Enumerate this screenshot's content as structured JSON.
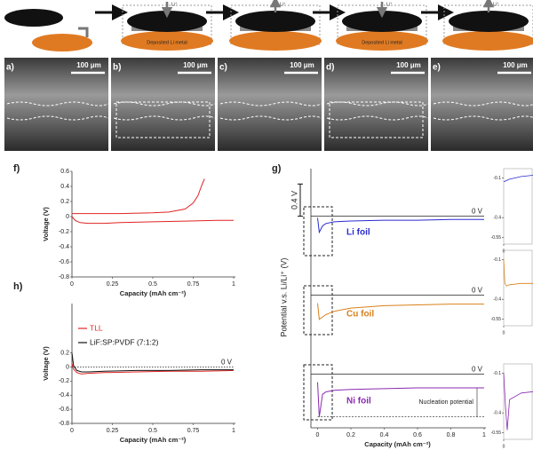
{
  "schematic": {
    "ion": "Li⁺",
    "deposit": "Deposited Li metal"
  },
  "sem": [
    {
      "label": "a)",
      "scale": "100 μm"
    },
    {
      "label": "b)",
      "scale": "100 μm"
    },
    {
      "label": "c)",
      "scale": "100 μm"
    },
    {
      "label": "d)",
      "scale": "100 μm"
    },
    {
      "label": "e)",
      "scale": "100 μm"
    }
  ],
  "chart_data": [
    {
      "type": "line",
      "label": "f)",
      "xlabel": "Capacity (mAh cm⁻²)",
      "ylabel": "Voltage (V)",
      "xlim": [
        0,
        1
      ],
      "xticks": [
        0,
        0.25,
        0.5,
        0.75,
        1
      ],
      "ylim": [
        -0.8,
        0.6
      ],
      "yticks": [
        -0.8,
        -0.6,
        -0.4,
        -0.2,
        0,
        0.2,
        0.4,
        0.6
      ],
      "series": [
        {
          "color": "#e02424",
          "x": [
            0,
            0.02,
            0.05,
            0.1,
            0.2,
            0.3,
            0.5,
            0.7,
            0.9,
            1
          ],
          "values": [
            0,
            -0.05,
            -0.08,
            -0.09,
            -0.09,
            -0.08,
            -0.07,
            -0.06,
            -0.05,
            -0.05
          ]
        },
        {
          "color": "#e02424",
          "x": [
            0,
            0.1,
            0.3,
            0.5,
            0.6,
            0.7,
            0.75,
            0.78,
            0.8,
            0.82
          ],
          "values": [
            0.04,
            0.04,
            0.04,
            0.05,
            0.06,
            0.1,
            0.18,
            0.28,
            0.4,
            0.5
          ]
        }
      ]
    },
    {
      "type": "line",
      "label": "h)",
      "xlabel": "Capacity (mAh cm⁻²)",
      "ylabel": "Voltage (V)",
      "legend": "upper left",
      "xlim": [
        0,
        1
      ],
      "xticks": [
        0,
        0.25,
        0.5,
        0.75,
        1
      ],
      "ylim": [
        -0.8,
        0.9
      ],
      "yticks": [
        -0.8,
        -0.6,
        -0.4,
        -0.2,
        0,
        0.2
      ],
      "hline": 0,
      "hline_label": "0 V",
      "series": [
        {
          "name": "TLL",
          "color": "#e02424",
          "x": [
            0,
            0.01,
            0.03,
            0.06,
            0.1,
            0.2,
            0.4,
            0.6,
            0.8,
            1
          ],
          "values": [
            0.05,
            -0.03,
            -0.08,
            -0.1,
            -0.09,
            -0.08,
            -0.07,
            -0.06,
            -0.06,
            -0.05
          ]
        },
        {
          "name": "LiF:SP:PVDF (7:1:2)",
          "color": "#111111",
          "x": [
            0,
            0.01,
            0.03,
            0.06,
            0.1,
            0.2,
            0.4,
            0.6,
            0.8,
            1
          ],
          "values": [
            0.2,
            0.02,
            -0.05,
            -0.07,
            -0.07,
            -0.06,
            -0.05,
            -0.05,
            -0.04,
            -0.04
          ]
        }
      ]
    },
    {
      "type": "line",
      "label": "g)",
      "ylabel": "Potential v.s. Li/Li⁺ (V)",
      "xlim": [
        -0.04,
        1
      ],
      "ylim": [
        -0.6,
        0.15
      ],
      "hline": 0,
      "hline_label": "0 V",
      "scale_bar": {
        "value": 0.4,
        "label": "0.4 V"
      },
      "series": [
        {
          "name": "Li foil",
          "color": "#2b2bd0",
          "x": [
            0,
            0.01,
            0.03,
            0.05,
            0.1,
            0.2,
            0.4,
            0.6,
            0.8,
            1
          ],
          "values": [
            -0.02,
            -0.2,
            -0.12,
            -0.09,
            -0.07,
            -0.06,
            -0.05,
            -0.05,
            -0.04,
            -0.04
          ]
        }
      ]
    },
    {
      "type": "line",
      "xlim": [
        -0.04,
        1
      ],
      "ylim": [
        -0.6,
        0.15
      ],
      "hline": 0,
      "hline_label": "0 V",
      "series": [
        {
          "name": "Cu foil",
          "color": "#d9801a",
          "x": [
            0,
            0.01,
            0.03,
            0.05,
            0.1,
            0.2,
            0.4,
            0.6,
            0.8,
            1
          ],
          "values": [
            -0.1,
            -0.3,
            -0.27,
            -0.24,
            -0.2,
            -0.16,
            -0.13,
            -0.12,
            -0.11,
            -0.11
          ]
        }
      ]
    },
    {
      "type": "line",
      "xlabel": "Capacity (mAh cm⁻²)",
      "xlim": [
        -0.04,
        1
      ],
      "xticks": [
        0,
        0.2,
        0.4,
        0.6,
        0.8,
        1
      ],
      "ylim": [
        -0.6,
        0.15
      ],
      "hline": 0,
      "hline_label": "0 V",
      "annotation": {
        "text": "Nucleation potential",
        "from": -0.17,
        "to": -0.53
      },
      "series": [
        {
          "name": "Ni foil",
          "color": "#8a2ab0",
          "x": [
            0,
            0.01,
            0.03,
            0.05,
            0.1,
            0.2,
            0.4,
            0.6,
            0.8,
            1
          ],
          "values": [
            -0.1,
            -0.53,
            -0.25,
            -0.22,
            -0.2,
            -0.19,
            -0.18,
            -0.17,
            -0.17,
            -0.17
          ]
        }
      ]
    },
    {
      "type": "line",
      "xlim": [
        0,
        0.05
      ],
      "xticks": [
        0
      ],
      "ylim": [
        -0.6,
        -0.03
      ],
      "yticks": [
        -0.1,
        -0.4,
        -0.55
      ],
      "series": [
        {
          "color": "#2b2bd0",
          "x": [
            0,
            0.01,
            0.02,
            0.03,
            0.05
          ],
          "values": [
            -0.13,
            -0.11,
            -0.1,
            -0.09,
            -0.08
          ]
        }
      ]
    },
    {
      "type": "line",
      "xlim": [
        0,
        0.05
      ],
      "xticks": [
        0
      ],
      "ylim": [
        -0.6,
        -0.03
      ],
      "yticks": [
        -0.1,
        -0.4,
        -0.55
      ],
      "series": [
        {
          "color": "#d9801a",
          "x": [
            0,
            0.002,
            0.005,
            0.01,
            0.03,
            0.05
          ],
          "values": [
            -0.1,
            -0.28,
            -0.3,
            -0.29,
            -0.28,
            -0.28
          ]
        }
      ]
    },
    {
      "type": "line",
      "xlim": [
        0,
        0.05
      ],
      "xticks": [
        0
      ],
      "ylim": [
        -0.6,
        -0.03
      ],
      "yticks": [
        -0.1,
        -0.4,
        -0.55
      ],
      "series": [
        {
          "color": "#8a2ab0",
          "x": [
            0,
            0.003,
            0.006,
            0.01,
            0.03,
            0.05
          ],
          "values": [
            -0.1,
            -0.35,
            -0.53,
            -0.3,
            -0.25,
            -0.24
          ]
        }
      ]
    }
  ]
}
